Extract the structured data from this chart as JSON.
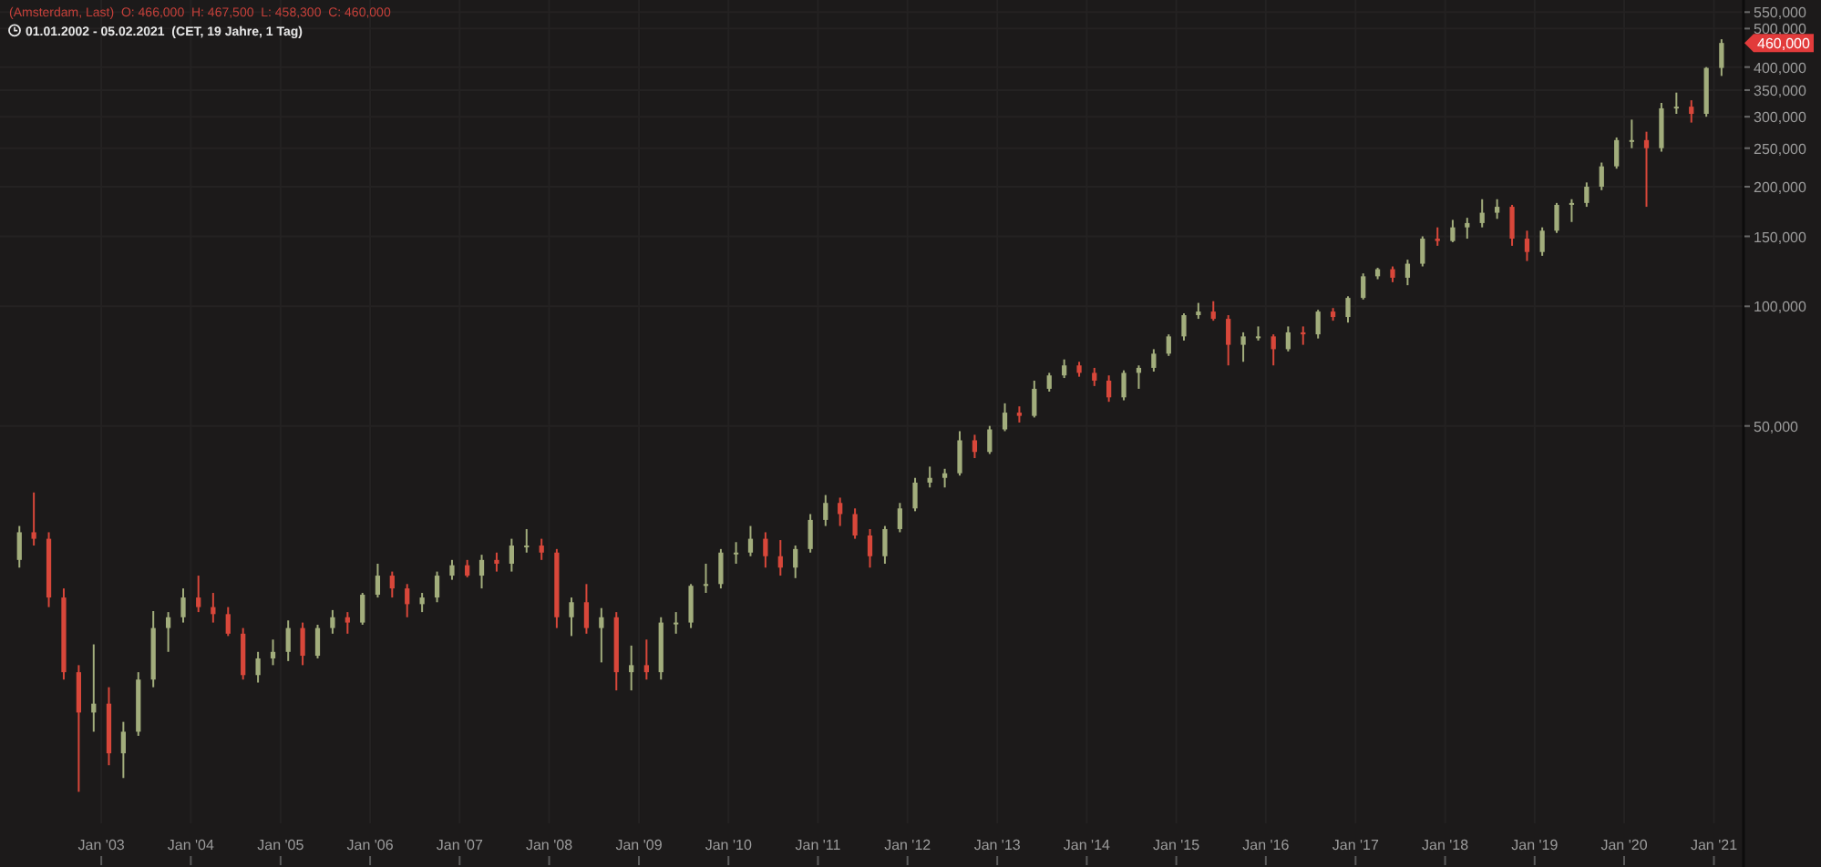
{
  "chart_data": {
    "type": "candlestick",
    "title": "(Amsterdam, Last)  O: 466,000  H: 467,500  L: 458,300  C: 460,000",
    "subtitle": "01.01.2002 - 05.02.2021  (CET, 19 Jahre, 1 Tag)",
    "x": [
      "2002-02",
      "2002-04",
      "2002-06",
      "2002-08",
      "2002-10",
      "2002-12",
      "2003-02",
      "2003-04",
      "2003-06",
      "2003-08",
      "2003-10",
      "2003-12",
      "2004-02",
      "2004-04",
      "2004-06",
      "2004-08",
      "2004-10",
      "2004-12",
      "2005-02",
      "2005-04",
      "2005-06",
      "2005-08",
      "2005-10",
      "2005-12",
      "2006-02",
      "2006-04",
      "2006-06",
      "2006-08",
      "2006-10",
      "2006-12",
      "2007-02",
      "2007-04",
      "2007-06",
      "2007-08",
      "2007-10",
      "2007-12",
      "2008-02",
      "2008-04",
      "2008-06",
      "2008-08",
      "2008-10",
      "2008-12",
      "2009-02",
      "2009-04",
      "2009-06",
      "2009-08",
      "2009-10",
      "2009-12",
      "2010-02",
      "2010-04",
      "2010-06",
      "2010-08",
      "2010-10",
      "2010-12",
      "2011-02",
      "2011-04",
      "2011-06",
      "2011-08",
      "2011-10",
      "2011-12",
      "2012-02",
      "2012-04",
      "2012-06",
      "2012-08",
      "2012-10",
      "2012-12",
      "2013-02",
      "2013-04",
      "2013-06",
      "2013-08",
      "2013-10",
      "2013-12",
      "2014-02",
      "2014-04",
      "2014-06",
      "2014-08",
      "2014-10",
      "2014-12",
      "2015-02",
      "2015-04",
      "2015-06",
      "2015-08",
      "2015-10",
      "2015-12",
      "2016-02",
      "2016-04",
      "2016-06",
      "2016-08",
      "2016-10",
      "2016-12",
      "2017-02",
      "2017-04",
      "2017-06",
      "2017-08",
      "2017-10",
      "2017-12",
      "2018-02",
      "2018-04",
      "2018-06",
      "2018-08",
      "2018-10",
      "2018-12",
      "2019-02",
      "2019-04",
      "2019-06",
      "2019-08",
      "2019-10",
      "2019-12",
      "2020-02",
      "2020-04",
      "2020-06",
      "2020-08",
      "2020-10",
      "2020-12",
      "2021-02"
    ],
    "ohlc": [
      [
        23000,
        28000,
        22000,
        27000
      ],
      [
        27000,
        34000,
        25000,
        26000
      ],
      [
        26000,
        27000,
        17500,
        18500
      ],
      [
        18500,
        19500,
        11500,
        12000
      ],
      [
        12000,
        12500,
        6000,
        9500
      ],
      [
        9500,
        14100,
        8500,
        10000
      ],
      [
        10000,
        11000,
        7000,
        7500
      ],
      [
        7500,
        9000,
        6500,
        8500
      ],
      [
        8500,
        12000,
        8300,
        11500
      ],
      [
        11500,
        17100,
        11000,
        15500
      ],
      [
        15500,
        17000,
        13500,
        16500
      ],
      [
        16500,
        19500,
        16000,
        18500
      ],
      [
        18500,
        21000,
        17000,
        17500
      ],
      [
        17500,
        19000,
        16000,
        16800
      ],
      [
        16800,
        17500,
        14800,
        15000
      ],
      [
        15000,
        15500,
        11500,
        11800
      ],
      [
        11800,
        13500,
        11300,
        13000
      ],
      [
        13000,
        14500,
        12500,
        13500
      ],
      [
        13500,
        16200,
        12800,
        15500
      ],
      [
        15500,
        16000,
        12500,
        13200
      ],
      [
        13200,
        15800,
        13000,
        15500
      ],
      [
        15500,
        17200,
        15000,
        16500
      ],
      [
        16500,
        17000,
        15000,
        16000
      ],
      [
        16000,
        19000,
        15800,
        18800
      ],
      [
        18800,
        22500,
        18500,
        21000
      ],
      [
        21000,
        21500,
        18500,
        19500
      ],
      [
        19500,
        20000,
        16500,
        17800
      ],
      [
        17800,
        19000,
        17000,
        18500
      ],
      [
        18500,
        21500,
        18000,
        21000
      ],
      [
        21000,
        23000,
        20500,
        22300
      ],
      [
        22300,
        23000,
        20800,
        21000
      ],
      [
        21000,
        23700,
        19500,
        23000
      ],
      [
        23000,
        24000,
        21500,
        22500
      ],
      [
        22500,
        26000,
        21500,
        25000
      ],
      [
        25000,
        27500,
        24000,
        25000
      ],
      [
        25000,
        26000,
        23000,
        24000
      ],
      [
        24000,
        24500,
        15500,
        16500
      ],
      [
        16500,
        18500,
        14800,
        18000
      ],
      [
        18000,
        20000,
        15000,
        15500
      ],
      [
        15500,
        17400,
        12700,
        16500
      ],
      [
        16500,
        17000,
        10800,
        12000
      ],
      [
        12000,
        14000,
        10800,
        12500
      ],
      [
        12500,
        14500,
        11500,
        12000
      ],
      [
        12000,
        16500,
        11500,
        16000
      ],
      [
        16000,
        17000,
        15000,
        16000
      ],
      [
        16000,
        20000,
        15500,
        19800
      ],
      [
        19800,
        22500,
        19000,
        20000
      ],
      [
        20000,
        24500,
        19500,
        24000
      ],
      [
        24000,
        25500,
        22500,
        24000
      ],
      [
        24000,
        28000,
        23500,
        26000
      ],
      [
        26000,
        27000,
        22000,
        23500
      ],
      [
        23500,
        25800,
        21000,
        22000
      ],
      [
        22000,
        25000,
        20700,
        24500
      ],
      [
        24500,
        30000,
        24000,
        29000
      ],
      [
        29000,
        33500,
        28000,
        32000
      ],
      [
        32000,
        33000,
        28000,
        30000
      ],
      [
        30000,
        31000,
        26000,
        26500
      ],
      [
        26500,
        27500,
        22000,
        23500
      ],
      [
        23500,
        28000,
        22500,
        27500
      ],
      [
        27500,
        32000,
        27000,
        31000
      ],
      [
        31000,
        37000,
        30500,
        36000
      ],
      [
        36000,
        39500,
        35000,
        37000
      ],
      [
        37000,
        39000,
        35000,
        38000
      ],
      [
        38000,
        48500,
        37500,
        46000
      ],
      [
        46000,
        47500,
        41500,
        43000
      ],
      [
        43000,
        50000,
        42500,
        49000
      ],
      [
        49000,
        57000,
        48500,
        54000
      ],
      [
        54000,
        56000,
        51000,
        53000
      ],
      [
        53000,
        65000,
        52500,
        62000
      ],
      [
        62000,
        68000,
        61000,
        67000
      ],
      [
        67000,
        73500,
        66000,
        71000
      ],
      [
        71000,
        72500,
        66500,
        68000
      ],
      [
        68000,
        70000,
        63000,
        65000
      ],
      [
        65000,
        67000,
        57500,
        59000
      ],
      [
        59000,
        69000,
        58000,
        68000
      ],
      [
        68000,
        71000,
        62000,
        70000
      ],
      [
        70000,
        78000,
        68500,
        76000
      ],
      [
        76000,
        85000,
        75000,
        84000
      ],
      [
        84000,
        96000,
        82000,
        95000
      ],
      [
        95000,
        102000,
        93000,
        97000
      ],
      [
        97000,
        103000,
        92000,
        93000
      ],
      [
        93000,
        95000,
        71000,
        80000
      ],
      [
        80000,
        86000,
        72500,
        84000
      ],
      [
        84000,
        89000,
        82000,
        84000
      ],
      [
        84000,
        85000,
        71000,
        78000
      ],
      [
        78000,
        89000,
        77000,
        86000
      ],
      [
        86000,
        89000,
        80000,
        85000
      ],
      [
        85000,
        98000,
        83000,
        97000
      ],
      [
        97000,
        99000,
        92000,
        94000
      ],
      [
        94000,
        106000,
        91000,
        105000
      ],
      [
        105000,
        121000,
        104000,
        119000
      ],
      [
        119000,
        125000,
        117000,
        124000
      ],
      [
        124000,
        126000,
        115000,
        118000
      ],
      [
        118000,
        131000,
        113000,
        128000
      ],
      [
        128000,
        150000,
        126000,
        148000
      ],
      [
        148000,
        158000,
        142000,
        146000
      ],
      [
        146000,
        165000,
        145000,
        158000
      ],
      [
        158000,
        167000,
        148000,
        162000
      ],
      [
        162000,
        186000,
        158000,
        172000
      ],
      [
        172000,
        186000,
        166000,
        178000
      ],
      [
        178000,
        180000,
        142000,
        148000
      ],
      [
        148000,
        155000,
        130000,
        137000
      ],
      [
        137000,
        158000,
        134000,
        155000
      ],
      [
        155000,
        182000,
        153000,
        180000
      ],
      [
        180000,
        186000,
        163000,
        182000
      ],
      [
        182000,
        205000,
        178000,
        200000
      ],
      [
        200000,
        230000,
        196000,
        225000
      ],
      [
        225000,
        266000,
        222000,
        262000
      ],
      [
        262000,
        295000,
        250000,
        262000
      ],
      [
        262000,
        275000,
        178000,
        250000
      ],
      [
        250000,
        325000,
        245000,
        315000
      ],
      [
        315000,
        345000,
        305000,
        318000
      ],
      [
        318000,
        330000,
        290000,
        305000
      ],
      [
        305000,
        400000,
        300000,
        398000
      ],
      [
        398000,
        470000,
        380000,
        460000
      ]
    ],
    "xlim": [
      "2001-11-14",
      "2021-04-28"
    ],
    "xticks": [
      {
        "value": "2003-01",
        "label": "Jan '03"
      },
      {
        "value": "2004-01",
        "label": "Jan '04"
      },
      {
        "value": "2005-01",
        "label": "Jan '05"
      },
      {
        "value": "2006-01",
        "label": "Jan '06"
      },
      {
        "value": "2007-01",
        "label": "Jan '07"
      },
      {
        "value": "2008-01",
        "label": "Jan '08"
      },
      {
        "value": "2009-01",
        "label": "Jan '09"
      },
      {
        "value": "2010-01",
        "label": "Jan '10"
      },
      {
        "value": "2011-01",
        "label": "Jan '11"
      },
      {
        "value": "2012-01",
        "label": "Jan '12"
      },
      {
        "value": "2013-01",
        "label": "Jan '13"
      },
      {
        "value": "2014-01",
        "label": "Jan '14"
      },
      {
        "value": "2015-01",
        "label": "Jan '15"
      },
      {
        "value": "2016-01",
        "label": "Jan '16"
      },
      {
        "value": "2017-01",
        "label": "Jan '17"
      },
      {
        "value": "2018-01",
        "label": "Jan '18"
      },
      {
        "value": "2019-01",
        "label": "Jan '19"
      },
      {
        "value": "2020-01",
        "label": "Jan '20"
      },
      {
        "value": "2021-01",
        "label": "Jan '21"
      }
    ],
    "ylim": [
      5000,
      590000
    ],
    "yticks": [
      {
        "value": 50000,
        "label": "50,000"
      },
      {
        "value": 100000,
        "label": "100,000"
      },
      {
        "value": 150000,
        "label": "150,000"
      },
      {
        "value": 200000,
        "label": "200,000"
      },
      {
        "value": 250000,
        "label": "250,000"
      },
      {
        "value": 300000,
        "label": "300,000"
      },
      {
        "value": 350000,
        "label": "350,000"
      },
      {
        "value": 400000,
        "label": "400,000"
      },
      {
        "value": 500000,
        "label": "500,000"
      },
      {
        "value": 550000,
        "label": "550,000"
      }
    ],
    "log": true,
    "grid": true,
    "annotations": [
      "460,000"
    ]
  }
}
